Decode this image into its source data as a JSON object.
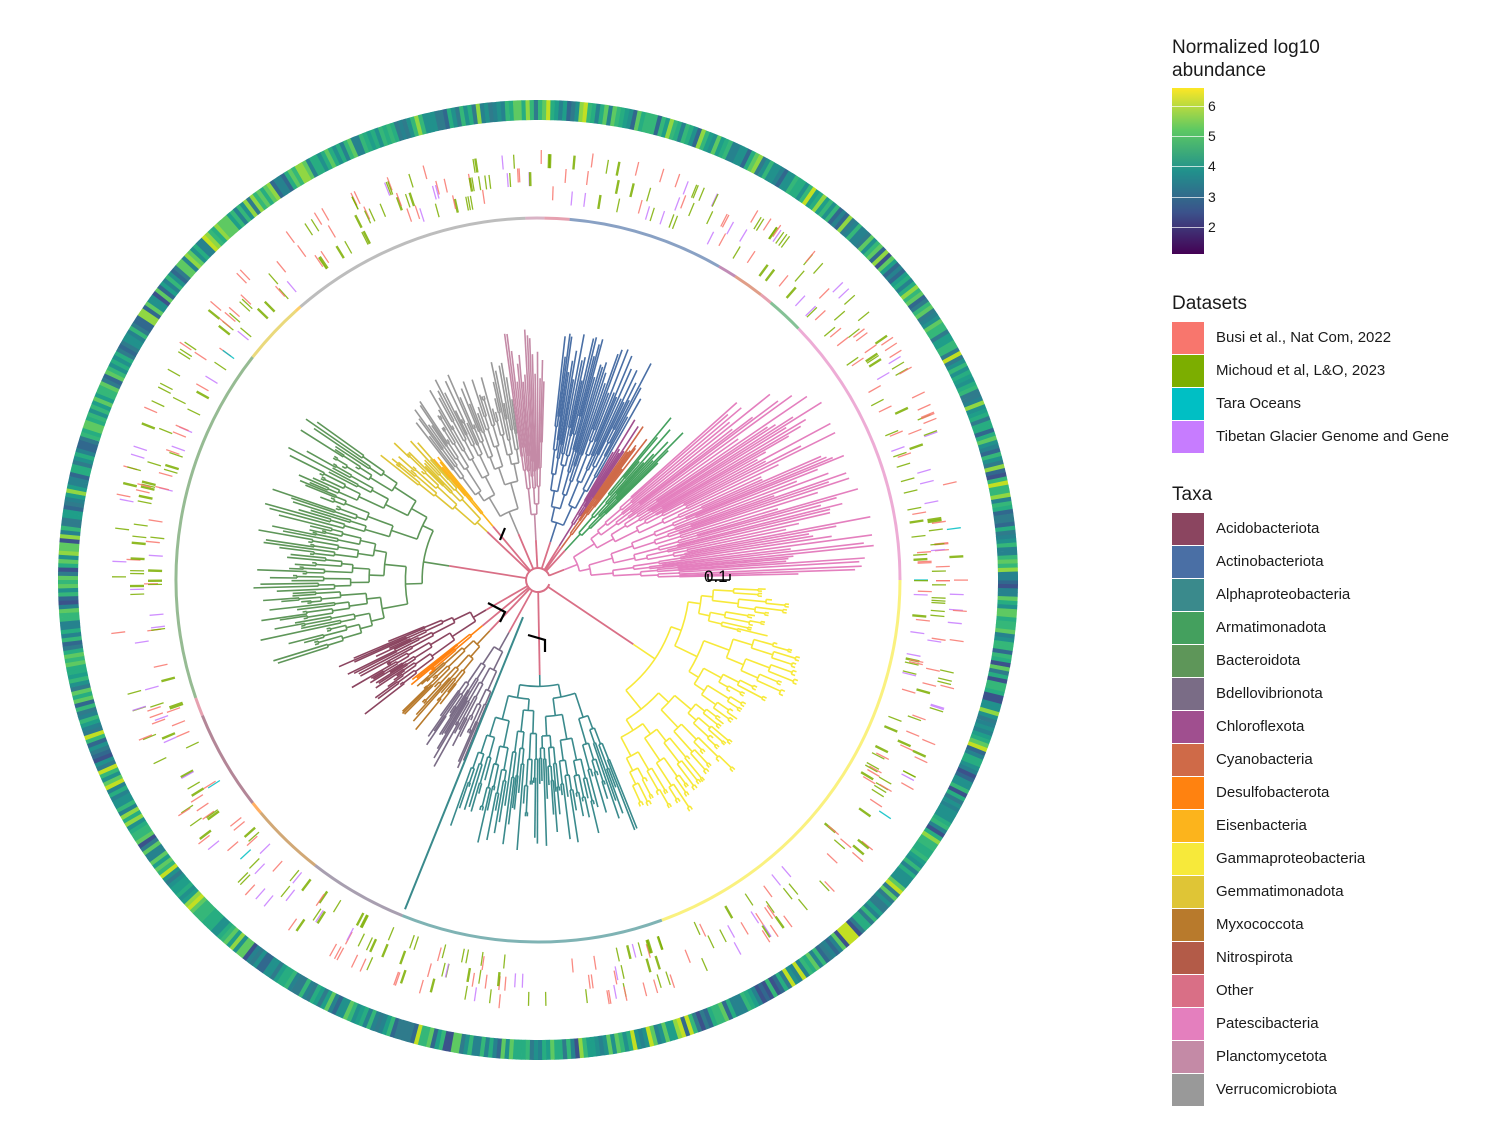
{
  "scale_bar": {
    "label": "0.1"
  },
  "legend": {
    "abundance": {
      "title_line1": "Normalized log10",
      "title_line2": "abundance",
      "ticks": [
        "6",
        "5",
        "4",
        "3",
        "2"
      ],
      "tick_values": [
        6,
        5,
        4,
        3,
        2
      ],
      "range": [
        1.1,
        6.6
      ],
      "palette": "viridis"
    },
    "datasets": {
      "title": "Datasets",
      "items": [
        {
          "label": "Busi et al., Nat Com, 2022",
          "color": "#f8766d"
        },
        {
          "label": "Michoud et al, L&O, 2023",
          "color": "#7cae00"
        },
        {
          "label": "Tara Oceans",
          "color": "#00bfc4"
        },
        {
          "label": "Tibetan Glacier Genome and Gene",
          "color": "#c77cff"
        }
      ]
    },
    "taxa": {
      "title": "Taxa",
      "items": [
        {
          "label": "Acidobacteriota",
          "color": "#8b4560"
        },
        {
          "label": "Actinobacteriota",
          "color": "#4a6fa5"
        },
        {
          "label": "Alphaproteobacteria",
          "color": "#3a8a8c"
        },
        {
          "label": "Armatimonadota",
          "color": "#44a05e"
        },
        {
          "label": "Bacteroidota",
          "color": "#5e9659"
        },
        {
          "label": "Bdellovibrionota",
          "color": "#7a6c86"
        },
        {
          "label": "Chloroflexota",
          "color": "#a04f8f"
        },
        {
          "label": "Cyanobacteria",
          "color": "#cf6a48"
        },
        {
          "label": "Desulfobacterota",
          "color": "#ff8210"
        },
        {
          "label": "Eisenbacteria",
          "color": "#fcb41c"
        },
        {
          "label": "Gammaproteobacteria",
          "color": "#f7e93a"
        },
        {
          "label": "Gemmatimonadota",
          "color": "#dfc536"
        },
        {
          "label": "Myxococcota",
          "color": "#b87a2c"
        },
        {
          "label": "Nitrospirota",
          "color": "#b35b48"
        },
        {
          "label": "Other",
          "color": "#d96f86"
        },
        {
          "label": "Patescibacteria",
          "color": "#e47fbe"
        },
        {
          "label": "Planctomycetota",
          "color": "#c48aa6"
        },
        {
          "label": "Verrucomicrobiota",
          "color": "#999999"
        }
      ]
    }
  }
}
